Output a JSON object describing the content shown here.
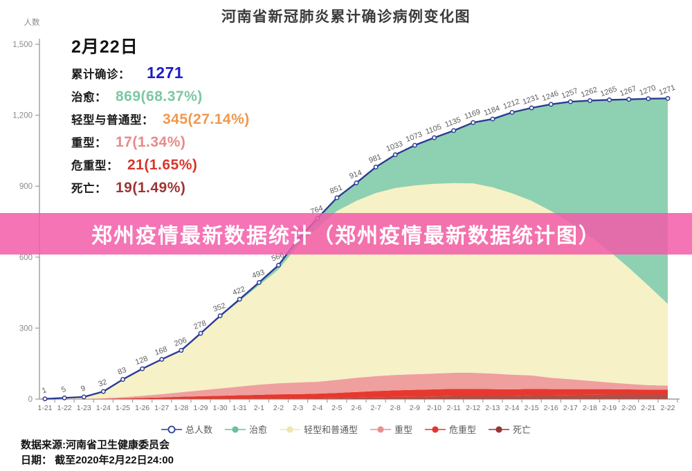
{
  "header": {
    "title": "河南省新冠肺炎累计确诊病例变化图"
  },
  "banner": {
    "text": "郑州疫情最新数据统计（郑州疫情最新数据统计图）",
    "bg_color": "#f25ca8",
    "text_color": "#ffffff"
  },
  "info_panel": {
    "date": "2月22日",
    "rows": [
      {
        "id": "total-confirmed",
        "label": "累计确诊：",
        "value": "1271",
        "color": "#1d1ac6"
      },
      {
        "id": "cured",
        "label": "治愈：",
        "value": "869(68.37%)",
        "color": "#7cc7a3"
      },
      {
        "id": "mild",
        "label": "轻型与普通型：",
        "value": "345(27.14%)",
        "color": "#f0984e"
      },
      {
        "id": "severe",
        "label": "重型：",
        "value": "17(1.34%)",
        "color": "#e88a88"
      },
      {
        "id": "critical",
        "label": "危重型：",
        "value": "21(1.65%)",
        "color": "#d6352b"
      },
      {
        "id": "death",
        "label": "死亡：",
        "value": "19(1.49%)",
        "color": "#9e3434"
      }
    ]
  },
  "legend": {
    "items": [
      {
        "id": "total",
        "label": "总人数",
        "color": "#2b3a94",
        "marker": "hollow"
      },
      {
        "id": "cured",
        "label": "治愈",
        "color": "#6cbf9b",
        "marker": "solid"
      },
      {
        "id": "mild",
        "label": "轻型和普通型",
        "color": "#efe5ad",
        "marker": "solid"
      },
      {
        "id": "severe",
        "label": "重型",
        "color": "#e78f8f",
        "marker": "solid"
      },
      {
        "id": "critical",
        "label": "危重型",
        "color": "#e53430",
        "marker": "solid"
      },
      {
        "id": "death",
        "label": "死亡",
        "color": "#993333",
        "marker": "solid"
      }
    ]
  },
  "footer": {
    "source": "数据来源:河南省卫生健康委员会",
    "date": "日期： 截至2020年2月22日24:00"
  },
  "chart_data": {
    "type": "area",
    "title": "河南省新冠肺炎累计确诊病例变化图",
    "ylabel": "人数",
    "ylim": [
      0,
      1500
    ],
    "ytick_step": 300,
    "ytick_labels": [
      "0",
      "300",
      "600",
      "900",
      "1,200",
      "1,500"
    ],
    "grid": false,
    "legend_position": "bottom",
    "x": [
      "1-21",
      "1-22",
      "1-23",
      "1-24",
      "1-25",
      "1-26",
      "1-27",
      "1-28",
      "1-29",
      "1-30",
      "1-31",
      "2-1",
      "2-2",
      "2-3",
      "2-4",
      "2-5",
      "2-6",
      "2-7",
      "2-8",
      "2-9",
      "2-10",
      "2-11",
      "2-12",
      "2-13",
      "2-14",
      "2-15",
      "2-16",
      "2-17",
      "2-18",
      "2-19",
      "2-20",
      "2-21",
      "2-22"
    ],
    "total_line": {
      "id": "total",
      "name": "总人数",
      "color": "#2b3a94",
      "values": [
        1,
        5,
        9,
        32,
        83,
        128,
        168,
        206,
        278,
        352,
        422,
        493,
        566,
        675,
        764,
        851,
        914,
        981,
        1033,
        1073,
        1105,
        1135,
        1169,
        1184,
        1212,
        1231,
        1246,
        1257,
        1262,
        1265,
        1267,
        1270,
        1271
      ]
    },
    "stacked_areas_bottom_to_top": [
      {
        "id": "death",
        "name": "死亡",
        "color": "#a8524b",
        "values": [
          0,
          0,
          0,
          0,
          1,
          1,
          1,
          2,
          2,
          2,
          2,
          2,
          2,
          2,
          3,
          4,
          6,
          8,
          9,
          10,
          11,
          13,
          13,
          13,
          13,
          16,
          16,
          17,
          18,
          19,
          19,
          19,
          19
        ]
      },
      {
        "id": "critical",
        "name": "危重型",
        "color": "#e8382e",
        "values": [
          0,
          0,
          0,
          1,
          2,
          4,
          6,
          8,
          10,
          12,
          14,
          16,
          18,
          19,
          20,
          22,
          24,
          26,
          28,
          29,
          30,
          30,
          30,
          29,
          28,
          27,
          26,
          25,
          24,
          23,
          22,
          21,
          21
        ]
      },
      {
        "id": "severe",
        "name": "重型",
        "color": "#ef9f9e",
        "values": [
          0,
          0,
          1,
          2,
          5,
          9,
          14,
          19,
          25,
          31,
          37,
          43,
          47,
          49,
          50,
          55,
          60,
          63,
          65,
          66,
          67,
          68,
          68,
          66,
          62,
          57,
          48,
          42,
          35,
          28,
          23,
          19,
          17
        ]
      },
      {
        "id": "mild",
        "name": "轻型和普通型",
        "color": "#f6f1c6",
        "values": [
          1,
          5,
          8,
          29,
          75,
          113,
          145,
          174,
          238,
          302,
          361,
          420,
          481,
          578,
          651,
          714,
          748,
          774,
          790,
          798,
          802,
          802,
          801,
          787,
          767,
          738,
          705,
          661,
          611,
          555,
          491,
          421,
          345
        ]
      },
      {
        "id": "cured",
        "name": "治愈",
        "color": "#8ed0b2",
        "values": [
          0,
          0,
          0,
          0,
          0,
          1,
          2,
          3,
          3,
          5,
          8,
          12,
          18,
          27,
          40,
          56,
          76,
          110,
          141,
          170,
          195,
          222,
          257,
          289,
          342,
          393,
          451,
          512,
          574,
          640,
          712,
          790,
          869
        ]
      }
    ]
  }
}
